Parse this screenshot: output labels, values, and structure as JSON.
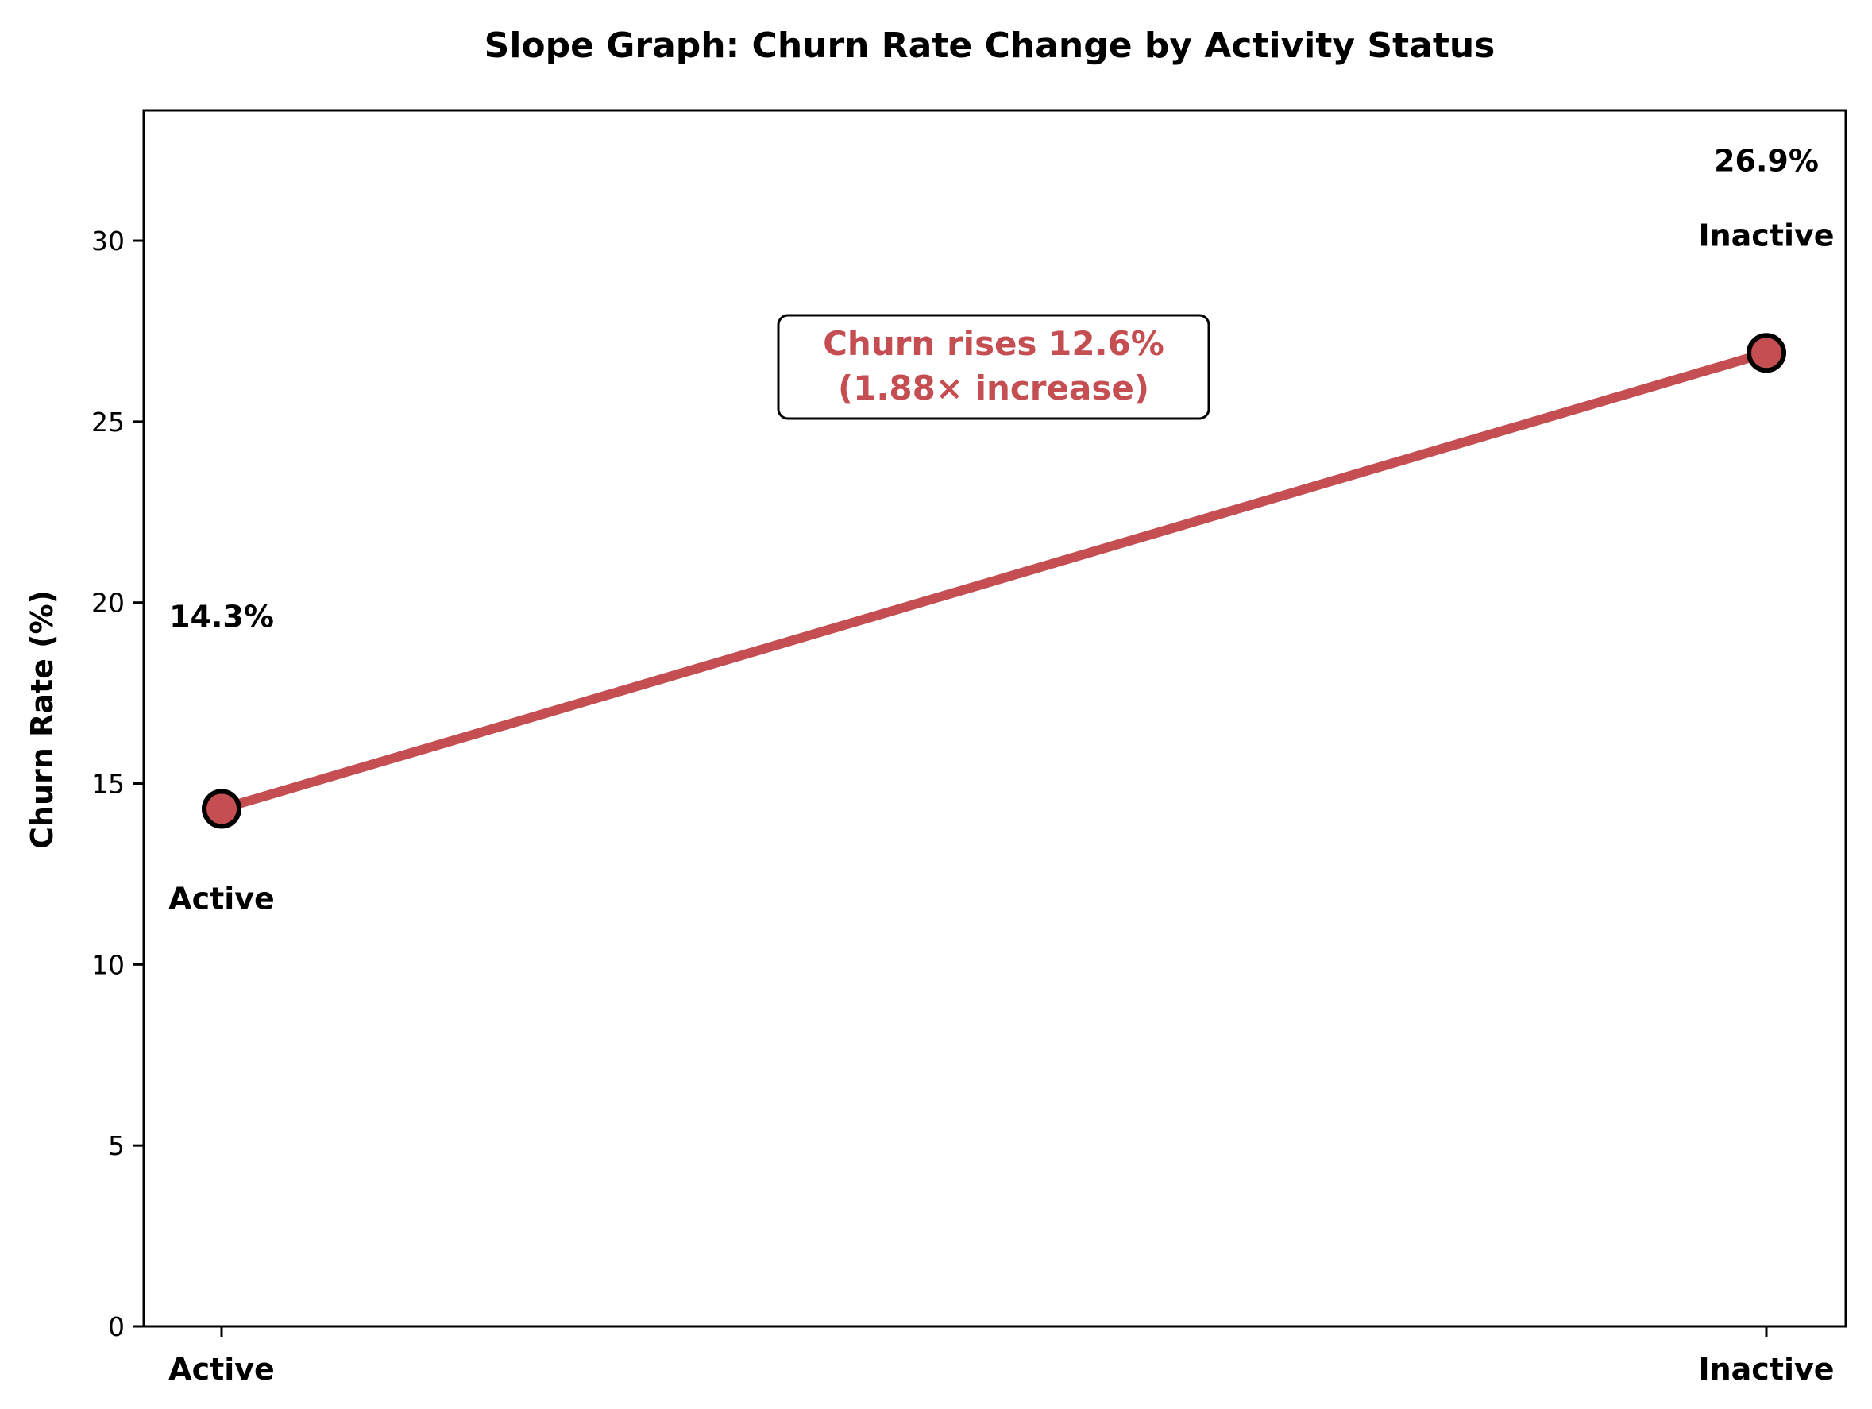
{
  "chart_data": {
    "type": "line",
    "title": "Slope Graph: Churn Rate Change by Activity Status",
    "xlabel": "",
    "ylabel": "Churn Rate (%)",
    "categories": [
      "Active",
      "Inactive"
    ],
    "series": [
      {
        "values": [
          14.3,
          26.9
        ],
        "color": "#c44e52"
      }
    ],
    "value_labels": [
      "14.3%",
      "26.9%"
    ],
    "point_labels": [
      "Active",
      "Inactive"
    ],
    "annotation": {
      "line1": "Churn rises 12.6%",
      "line2": "(1.88× increase)",
      "color": "#c44e52"
    },
    "ylim": [
      0,
      33.6
    ],
    "yticks": [
      0,
      5,
      10,
      15,
      20,
      25,
      30
    ],
    "grid": false,
    "legend": "none"
  }
}
